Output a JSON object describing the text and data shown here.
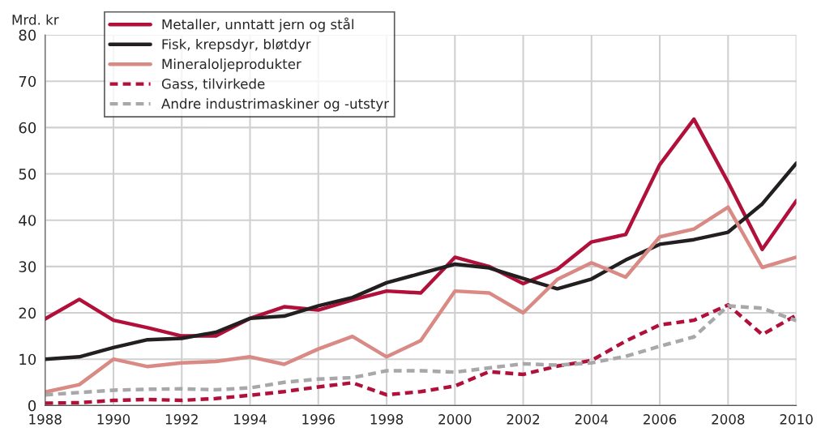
{
  "chart_data": {
    "type": "line",
    "ylabel": "Mrd. kr",
    "x": [
      1988,
      1989,
      1990,
      1991,
      1992,
      1993,
      1994,
      1995,
      1996,
      1997,
      1998,
      1999,
      2000,
      2001,
      2002,
      2003,
      2004,
      2005,
      2006,
      2007,
      2008,
      2009,
      2010
    ],
    "series": [
      {
        "name": "Metaller, unntatt jern og stål",
        "color": "#b0103a",
        "line_style": "solid",
        "values": [
          18.7,
          22.9,
          18.4,
          16.8,
          15.0,
          15.0,
          18.8,
          21.3,
          20.6,
          22.8,
          24.7,
          24.3,
          32.0,
          30.0,
          26.3,
          29.4,
          35.3,
          36.9,
          52.0,
          61.8,
          48.2,
          33.7,
          44.2
        ]
      },
      {
        "name": "Fisk, krepsdyr, bløtdyr",
        "color": "#231f20",
        "line_style": "solid",
        "values": [
          10.0,
          10.5,
          12.5,
          14.2,
          14.5,
          15.8,
          18.8,
          19.3,
          21.5,
          23.3,
          26.5,
          28.5,
          30.5,
          29.7,
          27.4,
          25.2,
          27.3,
          31.4,
          34.8,
          35.8,
          37.4,
          43.5,
          52.3
        ]
      },
      {
        "name": "Mineraloljeprodukter",
        "color": "#d98a84",
        "line_style": "solid",
        "values": [
          2.9,
          4.5,
          10.0,
          8.4,
          9.2,
          9.5,
          10.5,
          8.9,
          12.2,
          14.9,
          10.5,
          14.0,
          24.7,
          24.3,
          20.0,
          27.2,
          30.8,
          27.7,
          36.4,
          38.1,
          42.8,
          29.8,
          32.0
        ]
      },
      {
        "name": "Gass, tilvirkede",
        "color": "#b0103a",
        "line_style": "dashed",
        "values": [
          0.5,
          0.6,
          1.1,
          1.3,
          1.1,
          1.5,
          2.2,
          3.0,
          4.0,
          4.9,
          2.3,
          3.0,
          4.2,
          7.3,
          6.7,
          8.5,
          9.7,
          13.9,
          17.4,
          18.4,
          21.7,
          15.3,
          19.5
        ]
      },
      {
        "name": "Andre industrimaskiner og -utstyr",
        "color": "#a8a8ab",
        "line_style": "dashed",
        "values": [
          2.3,
          2.8,
          3.3,
          3.5,
          3.6,
          3.4,
          3.8,
          5.0,
          5.7,
          6.0,
          7.5,
          7.5,
          7.2,
          8.1,
          9.0,
          8.7,
          9.2,
          10.6,
          12.8,
          14.8,
          21.5,
          21.0,
          18.3
        ]
      }
    ],
    "xlim": [
      1988,
      2010
    ],
    "xticks": [
      1988,
      1990,
      1992,
      1994,
      1996,
      1998,
      2000,
      2002,
      2004,
      2006,
      2008,
      2010
    ],
    "ylim": [
      0,
      80
    ],
    "yticks": [
      0,
      10,
      20,
      30,
      40,
      50,
      60,
      70,
      80
    ],
    "grid": true,
    "legend": "top left"
  }
}
